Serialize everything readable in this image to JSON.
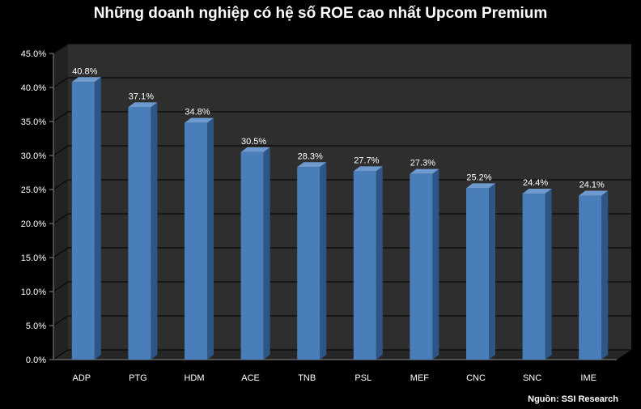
{
  "chart_data": {
    "type": "bar",
    "title": "Những doanh nghiệp có hệ số ROE cao nhất Upcom Premium",
    "categories": [
      "ADP",
      "PTG",
      "HDM",
      "ACE",
      "TNB",
      "PSL",
      "MEF",
      "CNC",
      "SNC",
      "IME"
    ],
    "values": [
      40.8,
      37.1,
      34.8,
      30.5,
      28.3,
      27.7,
      27.3,
      25.2,
      24.4,
      24.1
    ],
    "data_labels": [
      "40.8%",
      "37.1%",
      "34.8%",
      "30.5%",
      "28.3%",
      "27.7%",
      "27.3%",
      "25.2%",
      "24.4%",
      "24.1%"
    ],
    "yticks": [
      0,
      5,
      10,
      15,
      20,
      25,
      30,
      35,
      40,
      45
    ],
    "ytick_labels": [
      "0.0%",
      "5.0%",
      "10.0%",
      "15.0%",
      "20.0%",
      "25.0%",
      "30.0%",
      "35.0%",
      "40.0%",
      "45.0%"
    ],
    "ylim": [
      0,
      45
    ],
    "xlabel": "",
    "ylabel": "",
    "grid": true,
    "source": "Nguồn: SSI Research",
    "colors": {
      "bar_front": "#4a7ebb",
      "bar_side": "#2d5585",
      "bar_top": "#6f9ad0",
      "wall": "#2e2e2e",
      "floor": "#262626",
      "grid": "#000000",
      "text": "#ffffff"
    }
  }
}
